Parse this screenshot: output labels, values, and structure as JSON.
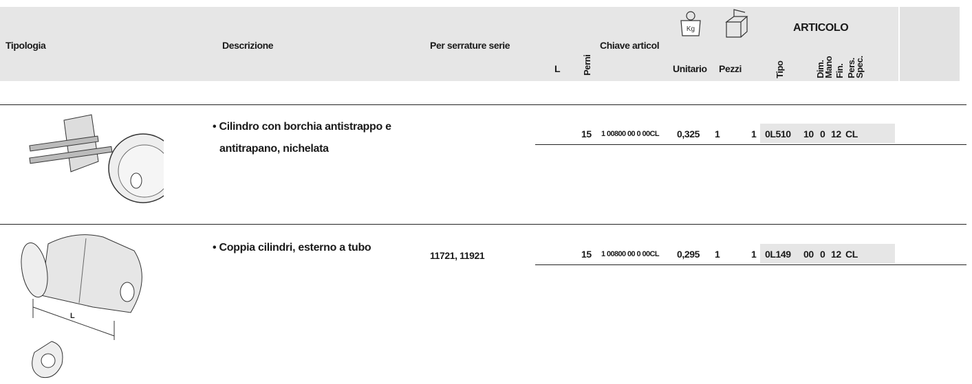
{
  "header": {
    "tipologia": "Tipologia",
    "descrizione": "Descrizione",
    "serie": "Per serrature serie",
    "l": "L",
    "perni": "Perni",
    "chiave": "Chiave articol",
    "kg": "Kg",
    "unitario": "Unitario",
    "pezzi": "Pezzi",
    "articolo": "ARTICOLO",
    "tipo": "Tipo",
    "dim": "Dim.",
    "mano": "Mano",
    "fin": "Fin.",
    "pers": "Pers.",
    "spec": "Spec."
  },
  "rows": [
    {
      "description": [
        "• Cilindro con borchia antistrappo e",
        "antitrapano, nichelata"
      ],
      "perni": "15",
      "chiave": "1 00800 00 0 00CL",
      "unitario": "0,325",
      "pezzi": "1",
      "quantity": "1",
      "articolo": [
        "0L510",
        "10",
        "0",
        "12",
        "CL"
      ],
      "image_label": null
    },
    {
      "description": [
        "• Coppia cilindri, esterno a tubo"
      ],
      "serie": "11721, 11921",
      "perni": "15",
      "chiave": "1 00800 00 0 00CL",
      "unitario": "0,295",
      "pezzi": "1",
      "quantity": "1",
      "articolo": [
        "0L149",
        "00",
        "0",
        "12",
        "CL"
      ],
      "image_label": "L"
    }
  ]
}
